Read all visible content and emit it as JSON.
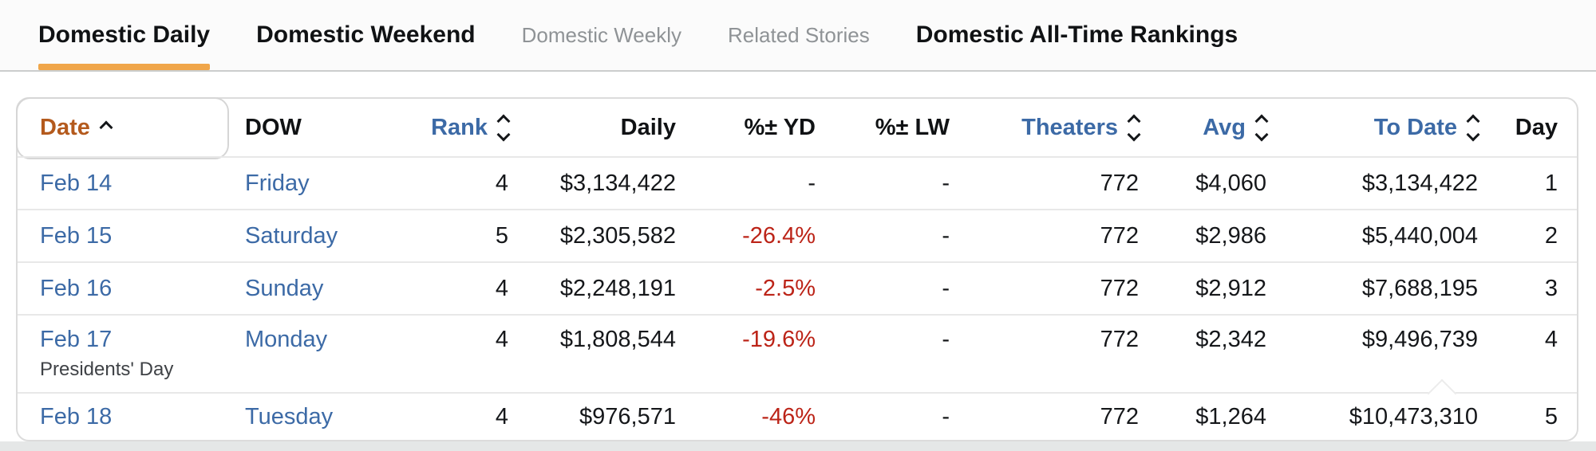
{
  "tabs": [
    {
      "id": "domestic-daily",
      "label": "Domestic Daily",
      "active": true,
      "muted": false
    },
    {
      "id": "domestic-weekend",
      "label": "Domestic Weekend",
      "active": false,
      "muted": false
    },
    {
      "id": "domestic-weekly",
      "label": "Domestic Weekly",
      "active": false,
      "muted": true
    },
    {
      "id": "related-stories",
      "label": "Related Stories",
      "active": false,
      "muted": true
    },
    {
      "id": "domestic-all-time-rankings",
      "label": "Domestic All-Time Rankings",
      "active": false,
      "muted": false
    }
  ],
  "table": {
    "columns": [
      {
        "key": "date",
        "label": "Date",
        "align": "left",
        "sort": "asc",
        "header_color": "orange"
      },
      {
        "key": "dow",
        "label": "DOW",
        "align": "left",
        "sort": "none",
        "header_color": "black"
      },
      {
        "key": "rank",
        "label": "Rank",
        "align": "right",
        "sort": "both",
        "header_color": "blue"
      },
      {
        "key": "daily",
        "label": "Daily",
        "align": "right",
        "sort": "none",
        "header_color": "black"
      },
      {
        "key": "yd",
        "label": "%± YD",
        "align": "right",
        "sort": "none",
        "header_color": "black"
      },
      {
        "key": "lw",
        "label": "%± LW",
        "align": "right",
        "sort": "none",
        "header_color": "black"
      },
      {
        "key": "theaters",
        "label": "Theaters",
        "align": "right",
        "sort": "both",
        "header_color": "blue"
      },
      {
        "key": "avg",
        "label": "Avg",
        "align": "right",
        "sort": "both",
        "header_color": "blue"
      },
      {
        "key": "to_date",
        "label": "To Date",
        "align": "right",
        "sort": "both",
        "header_color": "blue"
      },
      {
        "key": "day",
        "label": "Day",
        "align": "right",
        "sort": "none",
        "header_color": "black"
      }
    ],
    "rows": [
      {
        "date": "Feb 14",
        "dow": "Friday",
        "rank": "4",
        "daily": "$3,134,422",
        "yd": "-",
        "lw": "-",
        "theaters": "772",
        "avg": "$4,060",
        "to_date": "$3,134,422",
        "day": "1"
      },
      {
        "date": "Feb 15",
        "dow": "Saturday",
        "rank": "5",
        "daily": "$2,305,582",
        "yd": "-26.4%",
        "lw": "-",
        "theaters": "772",
        "avg": "$2,986",
        "to_date": "$5,440,004",
        "day": "2"
      },
      {
        "date": "Feb 16",
        "dow": "Sunday",
        "rank": "4",
        "daily": "$2,248,191",
        "yd": "-2.5%",
        "lw": "-",
        "theaters": "772",
        "avg": "$2,912",
        "to_date": "$7,688,195",
        "day": "3"
      },
      {
        "date": "Feb 17",
        "note": "Presidents' Day",
        "dow": "Monday",
        "rank": "4",
        "daily": "$1,808,544",
        "yd": "-19.6%",
        "lw": "-",
        "theaters": "772",
        "avg": "$2,342",
        "to_date": "$9,496,739",
        "day": "4"
      },
      {
        "date": "Feb 18",
        "dow": "Tuesday",
        "rank": "4",
        "daily": "$976,571",
        "yd": "-46%",
        "lw": "-",
        "theaters": "772",
        "avg": "$1,264",
        "to_date": "$10,473,310",
        "day": "5"
      }
    ]
  },
  "colors": {
    "active_tab_underline": "#f0a64a",
    "sorted_header_text": "#b45a1d",
    "link_blue": "#3c6aa6",
    "negative_red": "#bc2418"
  }
}
